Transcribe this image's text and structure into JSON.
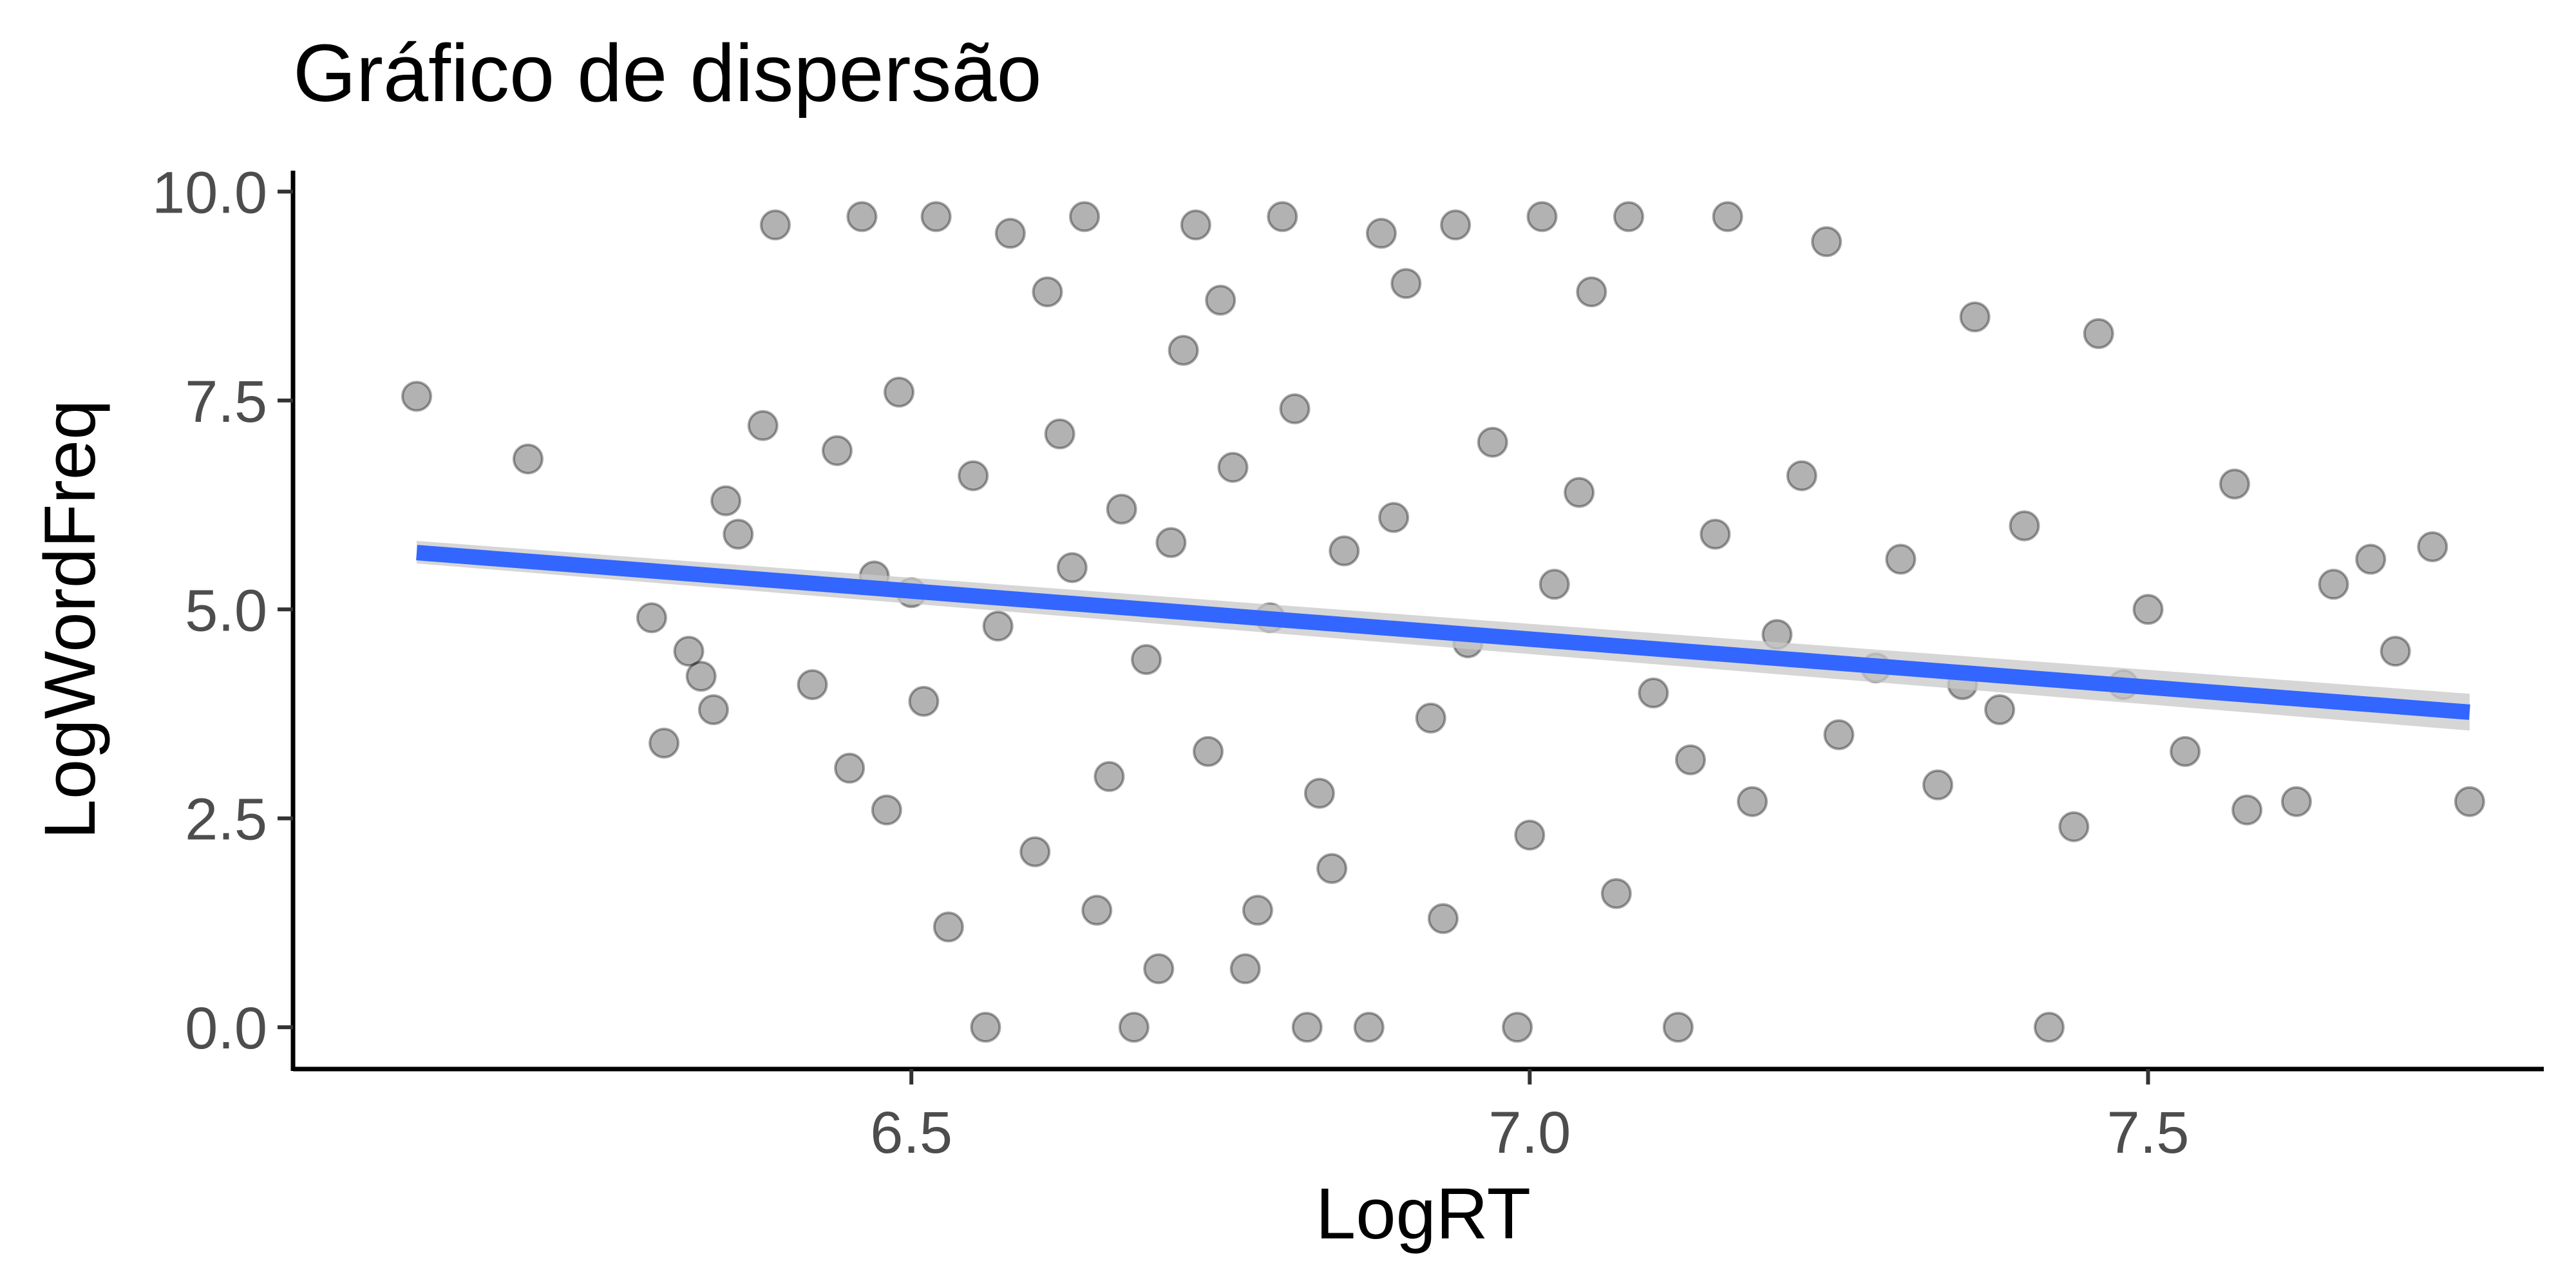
{
  "chart_data": {
    "type": "scatter",
    "title": "Gráfico de dispersão",
    "xlabel": "LogRT",
    "ylabel": "LogWordFreq",
    "xlim": [
      6.0,
      7.82
    ],
    "ylim": [
      -0.5,
      10.25
    ],
    "x_ticks": [
      6.5,
      7.0,
      7.5
    ],
    "x_tick_labels": [
      "6.5",
      "7.0",
      "7.5"
    ],
    "y_ticks": [
      0.0,
      2.5,
      5.0,
      7.5,
      10.0
    ],
    "y_tick_labels": [
      "0.0",
      "2.5",
      "5.0",
      "7.5",
      "10.0"
    ],
    "grid": false,
    "legend": "none",
    "point_color": "#000000",
    "point_opacity": 0.3,
    "trend": {
      "method": "linear",
      "color": "#3366FF",
      "band_color": "#C8C8C8",
      "x": [
        6.1,
        7.76
      ],
      "y": [
        5.68,
        3.77
      ],
      "se_lower": [
        5.55,
        3.55
      ],
      "se_upper": [
        5.82,
        3.99
      ]
    },
    "points": {
      "x": [
        6.1,
        6.19,
        6.29,
        6.3,
        6.32,
        6.33,
        6.34,
        6.35,
        6.36,
        6.38,
        6.42,
        6.44,
        6.45,
        6.47,
        6.48,
        6.49,
        6.5,
        6.51,
        6.53,
        6.55,
        6.57,
        6.6,
        6.62,
        6.63,
        6.66,
        6.67,
        6.69,
        6.7,
        6.71,
        6.72,
        6.74,
        6.76,
        6.78,
        6.79,
        6.81,
        6.83,
        6.85,
        6.87,
        6.89,
        6.92,
        6.95,
        6.97,
        7.0,
        7.02,
        7.04,
        7.07,
        7.1,
        7.13,
        7.15,
        7.18,
        7.2,
        7.22,
        7.25,
        7.28,
        7.3,
        7.33,
        7.35,
        7.38,
        7.4,
        7.42,
        7.44,
        7.48,
        7.5,
        7.53,
        7.57,
        7.58,
        7.62,
        7.65,
        7.68,
        7.7,
        7.73,
        7.76,
        6.39,
        6.46,
        6.52,
        6.58,
        6.64,
        6.73,
        6.8,
        6.88,
        6.94,
        7.01,
        7.08,
        7.16,
        7.24,
        7.36,
        7.46,
        6.56,
        6.68,
        6.82,
        6.99,
        7.12,
        6.61,
        6.75,
        6.9,
        7.05,
        6.65,
        6.77,
        6.84,
        6.93
      ],
      "y": [
        7.55,
        6.8,
        4.9,
        3.4,
        4.5,
        4.2,
        3.8,
        6.3,
        5.9,
        7.2,
        4.1,
        6.9,
        3.1,
        5.4,
        2.6,
        7.6,
        5.2,
        3.9,
        1.2,
        6.6,
        4.8,
        2.1,
        7.1,
        5.5,
        3.0,
        6.2,
        4.4,
        0.7,
        5.8,
        8.1,
        3.3,
        6.7,
        1.4,
        4.9,
        7.4,
        2.8,
        5.7,
        0.0,
        6.1,
        3.7,
        4.6,
        7.0,
        2.3,
        5.3,
        6.4,
        1.6,
        4.0,
        3.2,
        5.9,
        2.7,
        4.7,
        6.6,
        3.5,
        4.3,
        5.6,
        2.9,
        4.1,
        3.8,
        6.0,
        0.0,
        2.4,
        4.1,
        5.0,
        3.3,
        6.5,
        2.6,
        2.7,
        5.3,
        5.6,
        4.5,
        5.75,
        2.7,
        9.6,
        9.7,
        9.7,
        9.5,
        9.7,
        9.6,
        9.7,
        9.5,
        9.6,
        9.7,
        9.7,
        9.7,
        9.4,
        8.5,
        8.3,
        0.0,
        0.0,
        0.0,
        0.0,
        0.0,
        8.8,
        8.7,
        8.9,
        8.8,
        1.4,
        0.7,
        1.9,
        1.3
      ]
    }
  }
}
